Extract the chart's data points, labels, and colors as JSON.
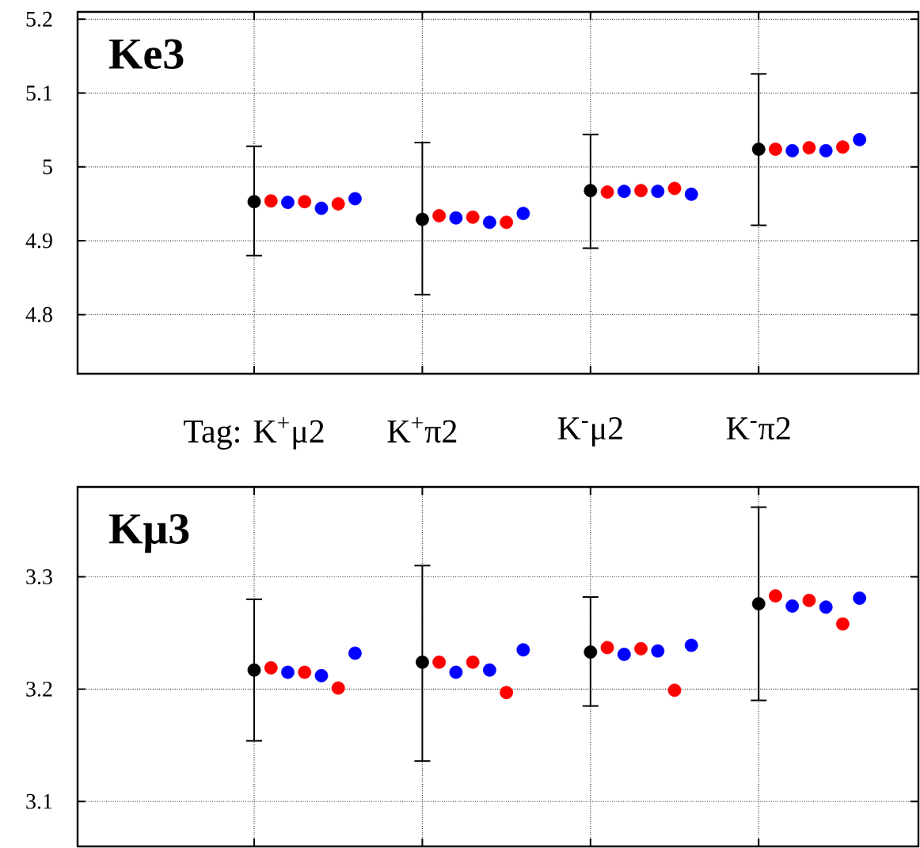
{
  "chart_data": [
    {
      "type": "scatter",
      "title": "Ke3",
      "marker": "circle",
      "grid": true,
      "categories": [
        null,
        null,
        null,
        null,
        null,
        null,
        null,
        null,
        null,
        null,
        "Tag: K$^{+}$μ2",
        null,
        null,
        null,
        null,
        null,
        null,
        null,
        null,
        null,
        "K$^{+}$π2",
        null,
        null,
        null,
        null,
        null,
        null,
        null,
        null,
        null,
        "K$^{-}$μ2",
        null,
        null,
        null,
        null,
        null,
        null,
        null,
        null,
        null,
        "K$^{-}$π2",
        null,
        null,
        null,
        null,
        null,
        null,
        null,
        null,
        null
      ],
      "ylim": [
        4.72,
        5.21
      ],
      "yticks": [
        4.8,
        4.9,
        5,
        5.1,
        5.2
      ],
      "series": [
        {
          "color": "#000000",
          "values": [
            null,
            null,
            null,
            null,
            null,
            null,
            null,
            null,
            null,
            null,
            4.953,
            null,
            null,
            null,
            null,
            null,
            null,
            null,
            null,
            null,
            4.929,
            null,
            null,
            null,
            null,
            null,
            null,
            null,
            null,
            null,
            4.968,
            null,
            null,
            null,
            null,
            null,
            null,
            null,
            null,
            null,
            5.024,
            null,
            null,
            null,
            null,
            null,
            null,
            null,
            null,
            null
          ],
          "errors": [
            null,
            null,
            null,
            null,
            null,
            null,
            null,
            null,
            null,
            null,
            [
              4.88,
              5.028
            ],
            null,
            null,
            null,
            null,
            null,
            null,
            null,
            null,
            null,
            [
              4.827,
              5.033
            ],
            null,
            null,
            null,
            null,
            null,
            null,
            null,
            null,
            null,
            [
              4.89,
              5.044
            ],
            null,
            null,
            null,
            null,
            null,
            null,
            null,
            null,
            null,
            [
              4.921,
              5.126
            ],
            null,
            null,
            null,
            null,
            null,
            null,
            null,
            null,
            null
          ]
        },
        {
          "color": "#ff0000",
          "values": [
            null,
            null,
            null,
            null,
            null,
            null,
            null,
            null,
            null,
            null,
            null,
            4.954,
            null,
            4.953,
            null,
            4.95,
            null,
            null,
            null,
            null,
            null,
            4.934,
            null,
            4.932,
            null,
            4.925,
            null,
            null,
            null,
            null,
            null,
            4.966,
            null,
            4.968,
            null,
            4.971,
            null,
            null,
            null,
            null,
            null,
            5.024,
            null,
            5.026,
            null,
            5.027,
            null,
            null,
            null,
            null
          ]
        },
        {
          "color": "#0000ff",
          "values": [
            null,
            null,
            null,
            null,
            null,
            null,
            null,
            null,
            null,
            null,
            null,
            null,
            4.952,
            null,
            4.944,
            null,
            4.957,
            null,
            null,
            null,
            null,
            null,
            4.931,
            null,
            4.925,
            null,
            4.937,
            null,
            null,
            null,
            null,
            null,
            4.967,
            null,
            4.967,
            null,
            4.963,
            null,
            null,
            null,
            null,
            null,
            5.022,
            null,
            5.022,
            null,
            5.037,
            null,
            null,
            null
          ]
        }
      ]
    },
    {
      "type": "scatter",
      "title": "Kμ3",
      "marker": "circle",
      "grid": true,
      "tick_labels": "y",
      "categories": [
        null,
        null,
        null,
        null,
        null,
        null,
        null,
        null,
        null,
        null,
        null,
        null,
        null,
        null,
        null,
        null,
        null,
        null,
        null,
        null,
        null,
        null,
        null,
        null,
        null,
        null,
        null,
        null,
        null,
        null,
        null,
        null,
        null,
        null,
        null,
        null,
        null,
        null,
        null,
        null,
        null,
        null,
        null,
        null,
        null,
        null,
        null,
        null,
        null,
        null
      ],
      "ylim": [
        3.06,
        3.38
      ],
      "yticks": [
        3.1,
        3.2,
        3.3
      ],
      "series": [
        {
          "color": "#000000",
          "values": [
            null,
            null,
            null,
            null,
            null,
            null,
            null,
            null,
            null,
            null,
            3.217,
            null,
            null,
            null,
            null,
            null,
            null,
            null,
            null,
            null,
            3.224,
            null,
            null,
            null,
            null,
            null,
            null,
            null,
            null,
            null,
            3.233,
            null,
            null,
            null,
            null,
            null,
            null,
            null,
            null,
            null,
            3.276,
            null,
            null,
            null,
            null,
            null,
            null,
            null,
            null,
            null
          ],
          "errors": [
            null,
            null,
            null,
            null,
            null,
            null,
            null,
            null,
            null,
            null,
            [
              3.154,
              3.28
            ],
            null,
            null,
            null,
            null,
            null,
            null,
            null,
            null,
            null,
            [
              3.136,
              3.31
            ],
            null,
            null,
            null,
            null,
            null,
            null,
            null,
            null,
            null,
            [
              3.185,
              3.282
            ],
            null,
            null,
            null,
            null,
            null,
            null,
            null,
            null,
            null,
            [
              3.19,
              3.362
            ],
            null,
            null,
            null,
            null,
            null,
            null,
            null,
            null,
            null
          ]
        },
        {
          "color": "#ff0000",
          "values": [
            null,
            null,
            null,
            null,
            null,
            null,
            null,
            null,
            null,
            null,
            null,
            3.219,
            null,
            3.215,
            null,
            3.201,
            null,
            null,
            null,
            null,
            null,
            3.224,
            null,
            3.224,
            null,
            3.197,
            null,
            null,
            null,
            null,
            null,
            3.237,
            null,
            3.236,
            null,
            3.199,
            null,
            null,
            null,
            null,
            null,
            3.283,
            null,
            3.279,
            null,
            3.258,
            null,
            null,
            null,
            null
          ]
        },
        {
          "color": "#0000ff",
          "values": [
            null,
            null,
            null,
            null,
            null,
            null,
            null,
            null,
            null,
            null,
            null,
            null,
            3.215,
            null,
            3.212,
            null,
            3.232,
            null,
            null,
            null,
            null,
            null,
            3.215,
            null,
            3.217,
            null,
            3.235,
            null,
            null,
            null,
            null,
            null,
            3.231,
            null,
            3.234,
            null,
            3.239,
            null,
            null,
            null,
            null,
            null,
            3.274,
            null,
            3.273,
            null,
            3.281,
            null,
            null,
            null
          ]
        }
      ]
    }
  ]
}
